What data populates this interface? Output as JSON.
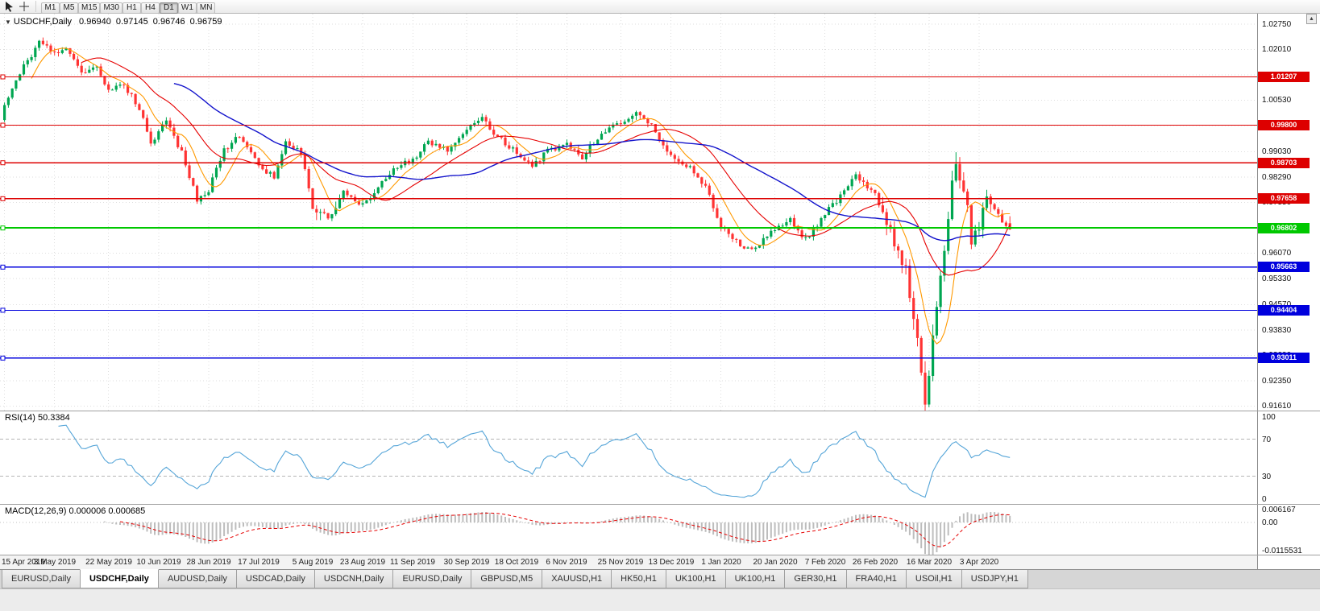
{
  "toolbar": {
    "timeframes": [
      "M1",
      "M5",
      "M15",
      "M30",
      "H1",
      "H4",
      "D1",
      "W1",
      "MN"
    ],
    "active_timeframe": "D1"
  },
  "chart": {
    "symbol_label": "USDCHF,Daily",
    "ohlc_label": "0.96940  0.97145  0.96746  0.96759"
  },
  "price_axis": {
    "ticks": [
      "1.02750",
      "1.02010",
      "1.01270",
      "1.00530",
      "0.99790",
      "0.99030",
      "0.98290",
      "0.97550",
      "0.96810",
      "0.96070",
      "0.95330",
      "0.94570",
      "0.93830",
      "0.93090",
      "0.92350",
      "0.91610"
    ]
  },
  "hlines": [
    {
      "label": "1.01207",
      "value": 1.01207,
      "kind": "resistance"
    },
    {
      "label": "0.99800",
      "value": 0.998,
      "kind": "resistance"
    },
    {
      "label": "0.98703",
      "value": 0.98703,
      "kind": "resistance"
    },
    {
      "label": "0.97658",
      "value": 0.97658,
      "kind": "resistance"
    },
    {
      "label": "0.96802",
      "value": 0.96802,
      "kind": "current"
    },
    {
      "label": "0.95663",
      "value": 0.95663,
      "kind": "support"
    },
    {
      "label": "0.94404",
      "value": 0.94404,
      "kind": "support"
    },
    {
      "label": "0.93011",
      "value": 0.93011,
      "kind": "support"
    }
  ],
  "rsi_panel": {
    "caption": "RSI(14) 50.3384",
    "axis_ticks": [
      "100",
      "70",
      "30",
      "0"
    ],
    "level_values": [
      100,
      70,
      30,
      0
    ],
    "dashed_levels": [
      70,
      30
    ]
  },
  "macd_panel": {
    "caption": "MACD(12,26,9) 0.000006 0.000685",
    "axis_ticks": [
      "0.006167",
      "0.00",
      "-0.0115531"
    ],
    "axis_values": [
      0.006167,
      0,
      -0.0115531
    ]
  },
  "date_axis": [
    "15 Apr 2019",
    "3 May 2019",
    "22 May 2019",
    "10 Jun 2019",
    "28 Jun 2019",
    "17 Jul 2019",
    "5 Aug 2019",
    "23 Aug 2019",
    "11 Sep 2019",
    "30 Sep 2019",
    "18 Oct 2019",
    "6 Nov 2019",
    "25 Nov 2019",
    "13 Dec 2019",
    "1 Jan 2020",
    "20 Jan 2020",
    "7 Feb 2020",
    "26 Feb 2020",
    "16 Mar 2020",
    "3 Apr 2020"
  ],
  "tabs": {
    "items": [
      "EURUSD,Daily",
      "USDCHF,Daily",
      "AUDUSD,Daily",
      "USDCAD,Daily",
      "USDCNH,Daily",
      "EURUSD,Daily",
      "GBPUSD,M5",
      "XAUUSD,H1",
      "HK50,H1",
      "UK100,H1",
      "UK100,H1",
      "GER30,H1",
      "FRA40,H1",
      "USOil,H1",
      "USDJPY,H1"
    ],
    "active_index": 1
  },
  "colors": {
    "up": "#00a651",
    "down": "#ff3333",
    "ma_fast": "#ff9900",
    "ma_mid": "#e60000",
    "ma_slow": "#1414cc",
    "resistance": "#dd0000",
    "support": "#0000dd",
    "current": "#00c800",
    "rsi_line": "#55a5d8",
    "macd_hist": "#bdbdbd",
    "macd_signal": "#e60000",
    "grid": "#dedede"
  },
  "chart_data": {
    "type": "candlestick",
    "symbol": "USDCHF",
    "period": "Daily",
    "last_ohlc": {
      "open": 0.9694,
      "high": 0.97145,
      "low": 0.96746,
      "close": 0.96759
    },
    "visible_price_range": [
      0.9148,
      1.0305
    ],
    "num_candles": 262,
    "x_labels": [
      "15 Apr 2019",
      "3 May 2019",
      "22 May 2019",
      "10 Jun 2019",
      "28 Jun 2019",
      "17 Jul 2019",
      "5 Aug 2019",
      "23 Aug 2019",
      "11 Sep 2019",
      "30 Sep 2019",
      "18 Oct 2019",
      "6 Nov 2019",
      "25 Nov 2019",
      "13 Dec 2019",
      "1 Jan 2020",
      "20 Jan 2020",
      "7 Feb 2020",
      "26 Feb 2020",
      "16 Mar 2020",
      "3 Apr 2020"
    ],
    "x_label_indices": [
      0,
      13,
      27,
      40,
      53,
      66,
      80,
      93,
      106,
      120,
      133,
      146,
      160,
      173,
      186,
      200,
      213,
      226,
      240,
      253
    ],
    "price_path_anchors": [
      [
        0,
        1.0035
      ],
      [
        5,
        1.015
      ],
      [
        9,
        1.022
      ],
      [
        13,
        1.019
      ],
      [
        16,
        1.0205
      ],
      [
        20,
        1.013
      ],
      [
        24,
        1.0152
      ],
      [
        27,
        1.008
      ],
      [
        31,
        1.0098
      ],
      [
        35,
        1.003
      ],
      [
        38,
        0.993
      ],
      [
        42,
        0.9992
      ],
      [
        46,
        0.99
      ],
      [
        50,
        0.9762
      ],
      [
        53,
        0.9792
      ],
      [
        57,
        0.9906
      ],
      [
        61,
        0.995
      ],
      [
        66,
        0.9862
      ],
      [
        70,
        0.9828
      ],
      [
        73,
        0.9936
      ],
      [
        77,
        0.9896
      ],
      [
        80,
        0.9732
      ],
      [
        84,
        0.9716
      ],
      [
        88,
        0.9786
      ],
      [
        93,
        0.9746
      ],
      [
        97,
        0.9796
      ],
      [
        101,
        0.9856
      ],
      [
        106,
        0.988
      ],
      [
        110,
        0.993
      ],
      [
        115,
        0.9906
      ],
      [
        120,
        0.9966
      ],
      [
        124,
        1.0
      ],
      [
        128,
        0.9946
      ],
      [
        133,
        0.99
      ],
      [
        137,
        0.9856
      ],
      [
        141,
        0.9906
      ],
      [
        146,
        0.9922
      ],
      [
        150,
        0.9886
      ],
      [
        155,
        0.996
      ],
      [
        160,
        0.999
      ],
      [
        164,
        1.0012
      ],
      [
        168,
        0.9976
      ],
      [
        173,
        0.989
      ],
      [
        178,
        0.9856
      ],
      [
        182,
        0.98
      ],
      [
        186,
        0.9686
      ],
      [
        190,
        0.964
      ],
      [
        194,
        0.9616
      ],
      [
        200,
        0.968
      ],
      [
        204,
        0.9702
      ],
      [
        208,
        0.9646
      ],
      [
        213,
        0.9722
      ],
      [
        217,
        0.9772
      ],
      [
        221,
        0.9832
      ],
      [
        226,
        0.978
      ],
      [
        230,
        0.966
      ],
      [
        234,
        0.956
      ],
      [
        236,
        0.943
      ],
      [
        238,
        0.928
      ],
      [
        239,
        0.9185
      ],
      [
        241,
        0.935
      ],
      [
        243,
        0.953
      ],
      [
        245,
        0.972
      ],
      [
        247,
        0.988
      ],
      [
        249,
        0.98
      ],
      [
        251,
        0.9655
      ],
      [
        253,
        0.969
      ],
      [
        255,
        0.9762
      ],
      [
        257,
        0.9742
      ],
      [
        259,
        0.9688
      ],
      [
        261,
        0.9676
      ]
    ],
    "extremes": {
      "crash_low": 0.9161,
      "rebound_high": 0.9901,
      "crash_low_index": 239,
      "rebound_high_index": 247
    },
    "horizontal_lines": [
      1.01207,
      0.998,
      0.98703,
      0.97658,
      0.96802,
      0.95663,
      0.94404,
      0.93011
    ],
    "indicators": [
      {
        "name": "SMA",
        "period": 8,
        "color_key": "ma_fast"
      },
      {
        "name": "SMA",
        "period": 21,
        "color_key": "ma_mid"
      },
      {
        "name": "SMA",
        "period": 45,
        "color_key": "ma_slow"
      },
      {
        "name": "RSI",
        "period": 14,
        "last_value": 50.3384,
        "levels": [
          70,
          30
        ]
      },
      {
        "name": "MACD",
        "fast": 12,
        "slow": 26,
        "signal": 9,
        "last_values": [
          6e-06,
          0.000685
        ],
        "scale": [
          -0.0115531,
          0.006167
        ]
      }
    ]
  }
}
